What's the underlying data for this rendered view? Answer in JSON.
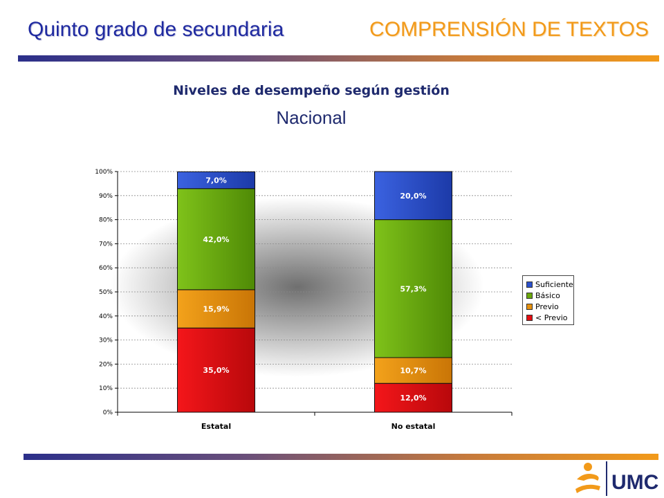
{
  "header": {
    "left_title": "Quinto grado de secundaria",
    "right_title": "COMPRENSIÓN DE TEXTOS"
  },
  "subtitle": "Niveles de desempeño según gestión",
  "region": "Nacional",
  "logo_text": "UMC",
  "colors": {
    "Suficiente": "#2c51cc",
    "Básico": "#6aa80c",
    "Previo": "#e5900e",
    "< Previo": "#e30e12"
  },
  "chart_data": {
    "type": "bar",
    "stacked": true,
    "categories": [
      "Estatal",
      "No estatal"
    ],
    "series": [
      {
        "name": "< Previo",
        "values": [
          35.0,
          12.0
        ],
        "labels": [
          "35,0%",
          "12,0%"
        ]
      },
      {
        "name": "Previo",
        "values": [
          15.9,
          10.7
        ],
        "labels": [
          "15,9%",
          "10,7%"
        ]
      },
      {
        "name": "Básico",
        "values": [
          42.0,
          57.3
        ],
        "labels": [
          "42,0%",
          "57,3%"
        ]
      },
      {
        "name": "Suficiente",
        "values": [
          7.0,
          20.0
        ],
        "labels": [
          "7,0%",
          "20,0%"
        ]
      }
    ],
    "ylim": [
      0,
      100
    ],
    "yticks": [
      "0%",
      "10%",
      "20%",
      "30%",
      "40%",
      "50%",
      "60%",
      "70%",
      "80%",
      "90%",
      "100%"
    ],
    "legend": [
      "Suficiente",
      "Básico",
      "Previo",
      "< Previo"
    ],
    "legend_position": "right",
    "grid": true
  }
}
